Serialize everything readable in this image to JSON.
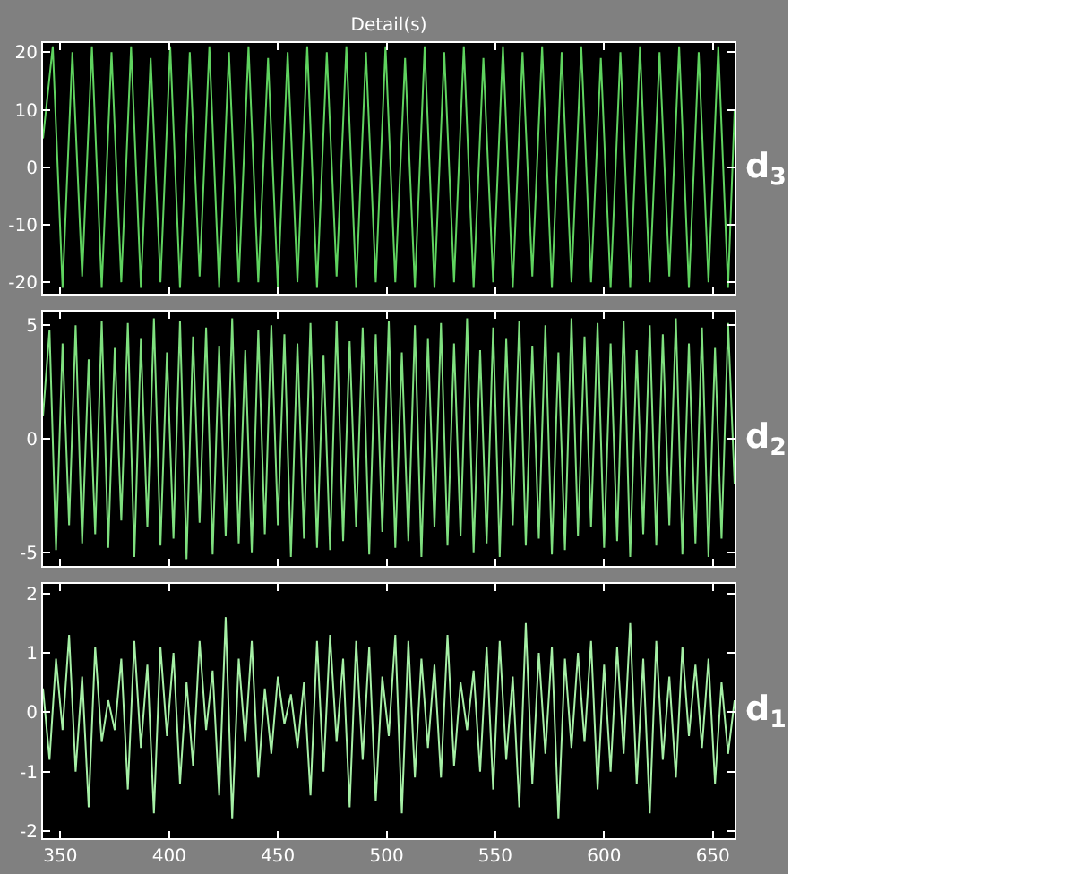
{
  "chart_data": [
    {
      "type": "line",
      "title": "Detail(s)",
      "ylabel": "d$_{3}$",
      "color": "#5fd35f",
      "x": [
        342,
        346.5,
        351,
        355.5,
        360,
        364.5,
        369,
        373.5,
        378,
        382.5,
        387,
        391.5,
        396,
        400.5,
        405,
        409.5,
        414,
        418.5,
        423,
        427.5,
        432,
        436.5,
        441,
        445.5,
        450,
        454.5,
        459,
        463.5,
        468,
        472.5,
        477,
        481.5,
        486,
        490.5,
        495,
        499.5,
        504,
        508.5,
        513,
        517.5,
        522,
        526.5,
        531,
        535.5,
        540,
        544.5,
        549,
        553.5,
        558,
        562.5,
        567,
        571.5,
        576,
        580.5,
        585,
        589.5,
        594,
        598.5,
        603,
        607.5,
        612,
        616.5,
        621,
        625.5,
        630,
        634.5,
        639,
        643.5,
        648,
        652.5,
        657,
        660
      ],
      "values": [
        5,
        21,
        -21,
        20,
        -19,
        21,
        -21,
        20,
        -20,
        21,
        -21,
        19,
        -20,
        21,
        -21,
        20,
        -19,
        21,
        -21,
        20,
        -20,
        21,
        -20,
        19,
        -21,
        20,
        -20,
        21,
        -21,
        20,
        -19,
        21,
        -21,
        20,
        -20,
        21,
        -20,
        19,
        -21,
        21,
        -21,
        20,
        -20,
        21,
        -21,
        19,
        -20,
        21,
        -21,
        20,
        -19,
        21,
        -21,
        20,
        -20,
        21,
        -20,
        19,
        -21,
        20,
        -21,
        21,
        -20,
        20,
        -19,
        21,
        -21,
        20,
        -20,
        21,
        -21,
        10
      ],
      "xlim": [
        342,
        660
      ],
      "xticks": [
        350,
        400,
        450,
        500,
        550,
        600,
        650
      ],
      "ylim": [
        -22,
        21.6
      ],
      "yticks": [
        -20,
        -10,
        0,
        10,
        20
      ],
      "tick_labels": "y"
    },
    {
      "type": "line",
      "ylabel": "d$_{2}$",
      "color": "#7fe07f",
      "x": [
        342,
        345,
        348,
        351,
        354,
        357,
        360,
        363,
        366,
        369,
        372,
        375,
        378,
        381,
        384,
        387,
        390,
        393,
        396,
        399,
        402,
        405,
        408,
        411,
        414,
        417,
        420,
        423,
        426,
        429,
        432,
        435,
        438,
        441,
        444,
        447,
        450,
        453,
        456,
        459,
        462,
        465,
        468,
        471,
        474,
        477,
        480,
        483,
        486,
        489,
        492,
        495,
        498,
        501,
        504,
        507,
        510,
        513,
        516,
        519,
        522,
        525,
        528,
        531,
        534,
        537,
        540,
        543,
        546,
        549,
        552,
        555,
        558,
        561,
        564,
        567,
        570,
        573,
        576,
        579,
        582,
        585,
        588,
        591,
        594,
        597,
        600,
        603,
        606,
        609,
        612,
        615,
        618,
        621,
        624,
        627,
        630,
        633,
        636,
        639,
        642,
        645,
        648,
        651,
        654,
        657,
        660
      ],
      "values": [
        1,
        4.8,
        -4.9,
        4.2,
        -3.8,
        5,
        -4.6,
        3.5,
        -4.2,
        5.2,
        -4.8,
        4,
        -3.6,
        5.1,
        -5.2,
        4.4,
        -3.9,
        5.3,
        -4.7,
        3.8,
        -4.4,
        5.2,
        -5.3,
        4.5,
        -3.7,
        4.9,
        -5.1,
        4.1,
        -4.3,
        5.3,
        -4.6,
        3.9,
        -5,
        4.8,
        -4.2,
        5,
        -3.8,
        4.6,
        -5.2,
        4.2,
        -4.4,
        5.1,
        -4.8,
        3.7,
        -4.9,
        5.2,
        -4.5,
        4.3,
        -3.9,
        4.9,
        -5.1,
        4.6,
        -4.1,
        5.2,
        -4.8,
        3.8,
        -4.5,
        5,
        -5.2,
        4.4,
        -3.9,
        5.1,
        -4.7,
        4.2,
        -4.3,
        5.3,
        -5,
        3.9,
        -4.6,
        4.9,
        -5.2,
        4.4,
        -3.8,
        5.2,
        -4.7,
        4.1,
        -4.4,
        5,
        -5.1,
        3.8,
        -4.9,
        5.3,
        -4.3,
        4.5,
        -3.9,
        5.1,
        -4.8,
        4.2,
        -4.5,
        5.2,
        -5.2,
        3.9,
        -4.2,
        5,
        -4.7,
        4.6,
        -3.8,
        5.3,
        -5.1,
        4.2,
        -4.6,
        4.9,
        -5.2,
        4,
        -4.4,
        5.1,
        -2
      ],
      "xlim": [
        342,
        660
      ],
      "xticks": [
        350,
        400,
        450,
        500,
        550,
        600,
        650
      ],
      "ylim": [
        -5.6,
        5.6
      ],
      "yticks": [
        -5,
        0,
        5
      ],
      "tick_labels": "y"
    },
    {
      "type": "line",
      "ylabel": "d$_{1}$",
      "color": "#a6f0a6",
      "x": [
        342,
        345,
        348,
        351,
        354,
        357,
        360,
        363,
        366,
        369,
        372,
        375,
        378,
        381,
        384,
        387,
        390,
        393,
        396,
        399,
        402,
        405,
        408,
        411,
        414,
        417,
        420,
        423,
        426,
        429,
        432,
        435,
        438,
        441,
        444,
        447,
        450,
        453,
        456,
        459,
        462,
        465,
        468,
        471,
        474,
        477,
        480,
        483,
        486,
        489,
        492,
        495,
        498,
        501,
        504,
        507,
        510,
        513,
        516,
        519,
        522,
        525,
        528,
        531,
        534,
        537,
        540,
        543,
        546,
        549,
        552,
        555,
        558,
        561,
        564,
        567,
        570,
        573,
        576,
        579,
        582,
        585,
        588,
        591,
        594,
        597,
        600,
        603,
        606,
        609,
        612,
        615,
        618,
        621,
        624,
        627,
        630,
        633,
        636,
        639,
        642,
        645,
        648,
        651,
        654,
        657,
        660
      ],
      "values": [
        0.4,
        -0.8,
        0.9,
        -0.3,
        1.3,
        -1.0,
        0.6,
        -1.6,
        1.1,
        -0.5,
        0.2,
        -0.3,
        0.9,
        -1.3,
        1.2,
        -0.6,
        0.8,
        -1.7,
        1.1,
        -0.4,
        1.0,
        -1.2,
        0.5,
        -0.9,
        1.2,
        -0.3,
        0.7,
        -1.4,
        1.6,
        -1.8,
        0.9,
        -0.5,
        1.2,
        -1.1,
        0.4,
        -0.7,
        0.6,
        -0.2,
        0.3,
        -0.6,
        0.5,
        -1.4,
        1.2,
        -1.0,
        1.3,
        -0.5,
        0.9,
        -1.6,
        1.2,
        -0.8,
        1.1,
        -1.5,
        0.6,
        -0.4,
        1.3,
        -1.7,
        1.2,
        -1.1,
        0.9,
        -0.6,
        0.8,
        -1.1,
        1.3,
        -0.9,
        0.5,
        -0.3,
        0.7,
        -1.0,
        1.1,
        -1.3,
        1.2,
        -0.8,
        0.6,
        -1.6,
        1.5,
        -1.2,
        1.0,
        -0.7,
        1.1,
        -1.8,
        0.9,
        -0.6,
        1.0,
        -0.5,
        1.2,
        -1.3,
        0.8,
        -1.0,
        1.1,
        -0.7,
        1.5,
        -1.2,
        0.9,
        -1.7,
        1.2,
        -0.8,
        0.6,
        -1.1,
        1.1,
        -0.4,
        0.8,
        -0.6,
        0.9,
        -1.2,
        0.5,
        -0.7,
        0.2
      ],
      "xlim": [
        342,
        660
      ],
      "xticks": [
        350,
        400,
        450,
        500,
        550,
        600,
        650
      ],
      "ylim": [
        -2.12,
        2.16
      ],
      "yticks": [
        -2,
        -1,
        0,
        1,
        2
      ]
    }
  ]
}
